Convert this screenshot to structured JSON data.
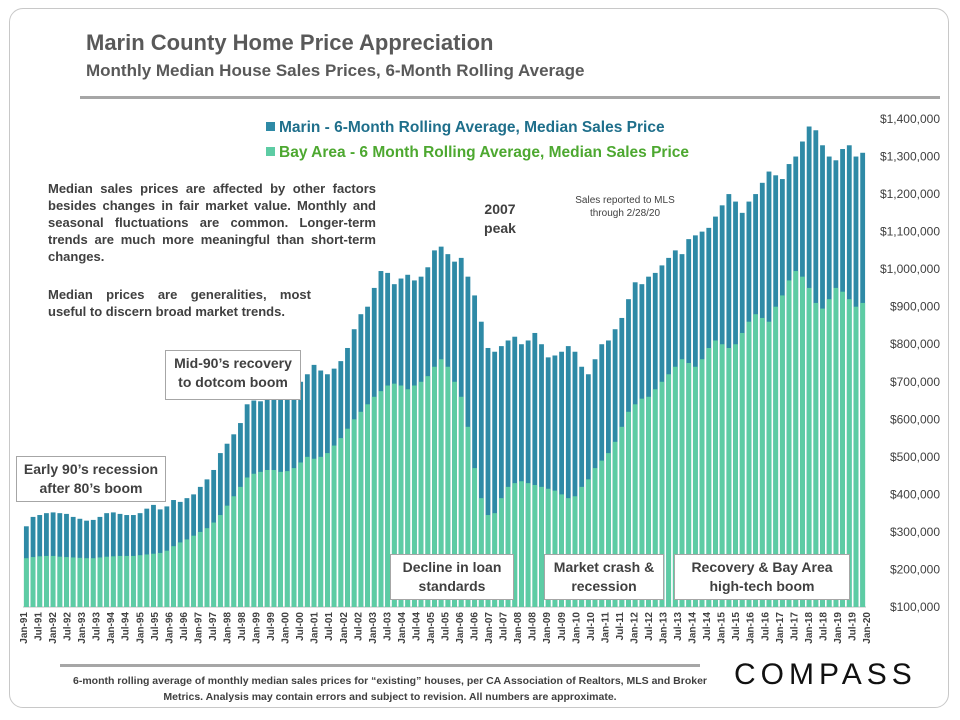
{
  "header": {
    "title": "Marin County Home Price Appreciation",
    "subtitle": "Monthly Median House Sales Prices, 6-Month Rolling Average"
  },
  "notes": {
    "note1": "Median sales prices are affected by other factors besides changes in fair market value. Monthly and seasonal fluctuations are common. Longer-term trends are much more meaningful than short-term changes.",
    "note2": "Median prices are generalities, most useful to discern broad market trends.",
    "mls": "Sales reported to MLS through 2/28/20"
  },
  "callouts": {
    "early90s": "Early 90’s recession after 80’s boom",
    "mid90s": "Mid-90’s recovery to dotcom boom",
    "peak2007": "2007 peak",
    "loan": "Decline in loan standards",
    "crash": "Market crash & recession",
    "recovery": "Recovery & Bay Area high-tech boom"
  },
  "footer": {
    "text": "6-month rolling average of monthly median sales prices for “existing” houses, per CA Association of Realtors, MLS and Broker Metrics. Analysis may contain errors and subject to revision. All numbers are approximate.",
    "logo": "COMPASS"
  },
  "colors": {
    "marin": "#2e8aa6",
    "bay_area": "#5dcca4",
    "marin_text": "#1f6f8b",
    "bay_text": "#4da830"
  },
  "chart_data": {
    "type": "bar",
    "title": "Marin County Home Price Appreciation",
    "subtitle": "Monthly Median House Sales Prices, 6-Month Rolling Average",
    "ylim": [
      100000,
      1400000
    ],
    "y_ticks": [
      "$100,000",
      "$200,000",
      "$300,000",
      "$400,000",
      "$500,000",
      "$600,000",
      "$700,000",
      "$800,000",
      "$900,000",
      "$1,000,000",
      "$1,100,000",
      "$1,200,000",
      "$1,300,000",
      "$1,400,000"
    ],
    "x_tick_labels": [
      "Jan-91",
      "Jul-91",
      "Jan-92",
      "Jul-92",
      "Jan-93",
      "Jul-93",
      "Jan-94",
      "Jul-94",
      "Jan-95",
      "Jul-95",
      "Jan-96",
      "Jul-96",
      "Jan-97",
      "Jul-97",
      "Jan-98",
      "Jul-98",
      "Jan-99",
      "Jul-99",
      "Jan-00",
      "Jul-00",
      "Jan-01",
      "Jul-01",
      "Jan-02",
      "Jul-02",
      "Jan-03",
      "Jul-03",
      "Jan-04",
      "Jul-04",
      "Jan-05",
      "Jul-05",
      "Jan-06",
      "Jul-06",
      "Jan-07",
      "Jul-07",
      "Jan-08",
      "Jul-08",
      "Jan-09",
      "Jul-09",
      "Jan-10",
      "Jul-10",
      "Jan-11",
      "Jul-11",
      "Jan-12",
      "Jul-12",
      "Jan-13",
      "Jul-13",
      "Jan-14",
      "Jul-14",
      "Jan-15",
      "Jul-15",
      "Jan-16",
      "Jul-16",
      "Jan-17",
      "Jul-17",
      "Jan-18",
      "Jul-18",
      "Jan-19",
      "Jul-19",
      "Jan-20"
    ],
    "legend": [
      "Marin - 6-Month Rolling Average, Median Sales Price",
      "Bay Area - 6 Month Rolling Average, Median Sales Price"
    ],
    "grid": false,
    "series": [
      {
        "name": "Marin - 6-Month Rolling Average, Median Sales Price",
        "values": [
          315000,
          340000,
          345000,
          350000,
          352000,
          350000,
          348000,
          340000,
          335000,
          330000,
          332000,
          340000,
          350000,
          352000,
          348000,
          345000,
          345000,
          350000,
          362000,
          372000,
          360000,
          368000,
          385000,
          380000,
          390000,
          400000,
          420000,
          440000,
          465000,
          510000,
          535000,
          560000,
          590000,
          640000,
          650000,
          648000,
          660000,
          680000,
          690000,
          680000,
          670000,
          700000,
          720000,
          745000,
          730000,
          720000,
          735000,
          755000,
          790000,
          840000,
          880000,
          900000,
          950000,
          995000,
          990000,
          960000,
          975000,
          985000,
          970000,
          980000,
          1005000,
          1050000,
          1060000,
          1040000,
          1020000,
          1030000,
          980000,
          930000,
          860000,
          790000,
          780000,
          795000,
          810000,
          820000,
          800000,
          810000,
          830000,
          800000,
          765000,
          770000,
          780000,
          795000,
          780000,
          740000,
          720000,
          760000,
          800000,
          810000,
          840000,
          870000,
          920000,
          965000,
          960000,
          980000,
          990000,
          1010000,
          1030000,
          1050000,
          1040000,
          1080000,
          1090000,
          1100000,
          1110000,
          1140000,
          1170000,
          1200000,
          1180000,
          1150000,
          1180000,
          1200000,
          1230000,
          1260000,
          1250000,
          1240000,
          1280000,
          1300000,
          1340000,
          1380000,
          1370000,
          1330000,
          1300000,
          1290000,
          1320000,
          1330000,
          1300000,
          1310000
        ]
      },
      {
        "name": "Bay Area - 6 Month Rolling Average, Median Sales Price",
        "values": [
          230000,
          233000,
          235000,
          236000,
          236000,
          234000,
          233000,
          232000,
          231000,
          230000,
          230000,
          232000,
          234000,
          235000,
          236000,
          236000,
          236000,
          238000,
          240000,
          242000,
          244000,
          250000,
          262000,
          272000,
          280000,
          290000,
          300000,
          310000,
          325000,
          345000,
          370000,
          395000,
          420000,
          445000,
          455000,
          460000,
          465000,
          465000,
          460000,
          462000,
          470000,
          485000,
          500000,
          495000,
          500000,
          510000,
          530000,
          550000,
          575000,
          600000,
          620000,
          640000,
          660000,
          675000,
          690000,
          695000,
          690000,
          680000,
          690000,
          700000,
          715000,
          740000,
          760000,
          740000,
          700000,
          660000,
          580000,
          470000,
          390000,
          345000,
          350000,
          390000,
          420000,
          430000,
          435000,
          430000,
          425000,
          420000,
          415000,
          410000,
          400000,
          390000,
          395000,
          420000,
          440000,
          470000,
          490000,
          510000,
          540000,
          580000,
          620000,
          640000,
          655000,
          660000,
          680000,
          700000,
          720000,
          740000,
          760000,
          750000,
          740000,
          760000,
          790000,
          810000,
          800000,
          790000,
          800000,
          830000,
          860000,
          880000,
          870000,
          860000,
          900000,
          930000,
          970000,
          995000,
          980000,
          950000,
          910000,
          895000,
          920000,
          950000,
          940000,
          920000,
          900000,
          910000
        ]
      }
    ]
  }
}
